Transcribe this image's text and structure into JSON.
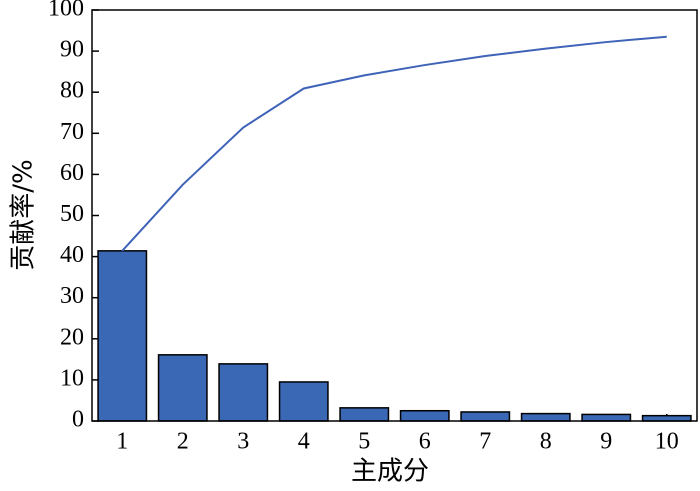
{
  "chart_data": {
    "type": "bar",
    "x_label": "主成分",
    "y_label": "贡献率/%",
    "categories": [
      "1",
      "2",
      "3",
      "4",
      "5",
      "6",
      "7",
      "8",
      "9",
      "10"
    ],
    "series": [
      {
        "type": "bar",
        "color": "#3a68b4",
        "values": [
          41.4,
          16.1,
          13.9,
          9.5,
          3.2,
          2.5,
          2.2,
          1.8,
          1.6,
          1.3
        ]
      },
      {
        "type": "line",
        "color": "#3f63b8",
        "values": [
          41.4,
          57.5,
          71.4,
          80.9,
          84.1,
          86.6,
          88.8,
          90.6,
          92.2,
          93.5
        ]
      }
    ],
    "ylim": [
      0,
      100
    ],
    "yticks": [
      0,
      10,
      20,
      30,
      40,
      50,
      60,
      70,
      80,
      90,
      100
    ]
  }
}
